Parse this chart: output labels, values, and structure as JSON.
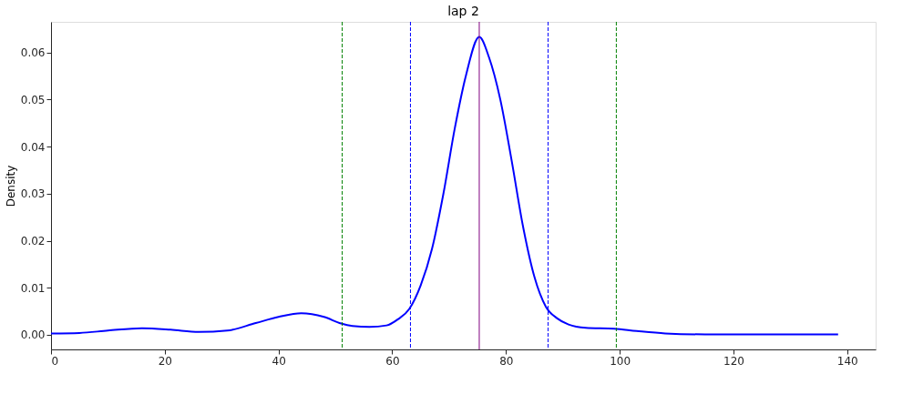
{
  "chart_data": {
    "type": "line",
    "title": "lap 2",
    "ylabel": "Density",
    "x": [
      0,
      5,
      10,
      16,
      21,
      26,
      31,
      36,
      40,
      44,
      48,
      51,
      53,
      56,
      59,
      61,
      63,
      65,
      67,
      69,
      71,
      73,
      75.3,
      77,
      79,
      81,
      83,
      85,
      87,
      89,
      91,
      94,
      99,
      103,
      108,
      115,
      125,
      138.4
    ],
    "series": [
      {
        "color": "#0000ff",
        "values": [
          0.0003,
          0.0004,
          0.0009,
          0.0014,
          0.0011,
          0.0006,
          0.0009,
          0.0025,
          0.0038,
          0.0046,
          0.0038,
          0.0024,
          0.0019,
          0.0017,
          0.002,
          0.0033,
          0.0055,
          0.0105,
          0.0183,
          0.03,
          0.0439,
          0.0553,
          0.0633,
          0.059,
          0.05,
          0.037,
          0.023,
          0.0123,
          0.006,
          0.0035,
          0.0022,
          0.0015,
          0.0013,
          0.0008,
          0.0003,
          0.0001,
          0.0001,
          0.0001
        ]
      }
    ],
    "xlim": [
      0,
      145
    ],
    "ylim": [
      -0.0031,
      0.0665
    ],
    "xticks": [
      0,
      20,
      40,
      60,
      80,
      100,
      120,
      140
    ],
    "yticks": [
      {
        "value": 0,
        "label": "0.00"
      },
      0.01,
      0.02,
      0.03,
      0.04,
      0.05,
      0.06
    ],
    "ref_lines": [
      {
        "axis": "x",
        "value": 75.3,
        "color": "#800080",
        "line_style": "solid"
      },
      {
        "axis": "x",
        "value": 63.2,
        "color": "#0000ff",
        "line_style": "dashed"
      },
      {
        "axis": "x",
        "value": 87.4,
        "color": "#0000ff",
        "line_style": "dashed"
      },
      {
        "axis": "x",
        "value": 51.2,
        "color": "#008000",
        "line_style": "dashed"
      },
      {
        "axis": "x",
        "value": 99.4,
        "color": "#008000",
        "line_style": "dashed"
      }
    ],
    "grid": false,
    "marker": "none",
    "line_style": "solid"
  }
}
